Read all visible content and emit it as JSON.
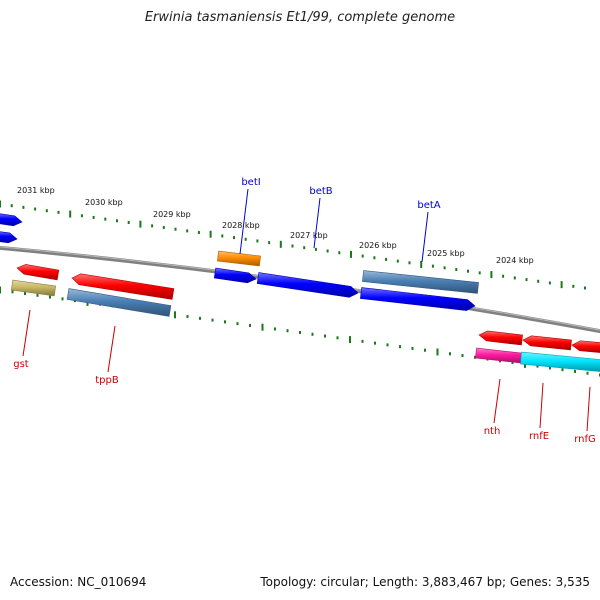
{
  "title": "Erwinia tasmaniensis Et1/99, complete genome",
  "footer": {
    "accession": "Accession: NC_010694",
    "summary": "Topology: circular; Length: 3,883,467 bp; Genes: 3,535"
  },
  "colors": {
    "backbone": "#808080",
    "tick": "#1a7a1a",
    "forward_label": "#0000cc",
    "reverse_label": "#cc0000",
    "red": "#ff0000",
    "blue": "#0000ff",
    "steel": "#4a7fb5",
    "orange": "#ff8c00",
    "khaki": "#c8b864",
    "magenta": "#ff1aa0",
    "cyan": "#00e5ff"
  },
  "scale_labels": [
    "2031 kbp",
    "2030 kbp",
    "2029 kbp",
    "2028 kbp",
    "2027 kbp",
    "2026 kbp",
    "2025 kbp",
    "2024 kbp"
  ],
  "gene_labels": {
    "forward": [
      "betI",
      "betB",
      "betA"
    ],
    "reverse": [
      "gst",
      "tppB",
      "nth",
      "rnfE",
      "rnfG"
    ]
  }
}
